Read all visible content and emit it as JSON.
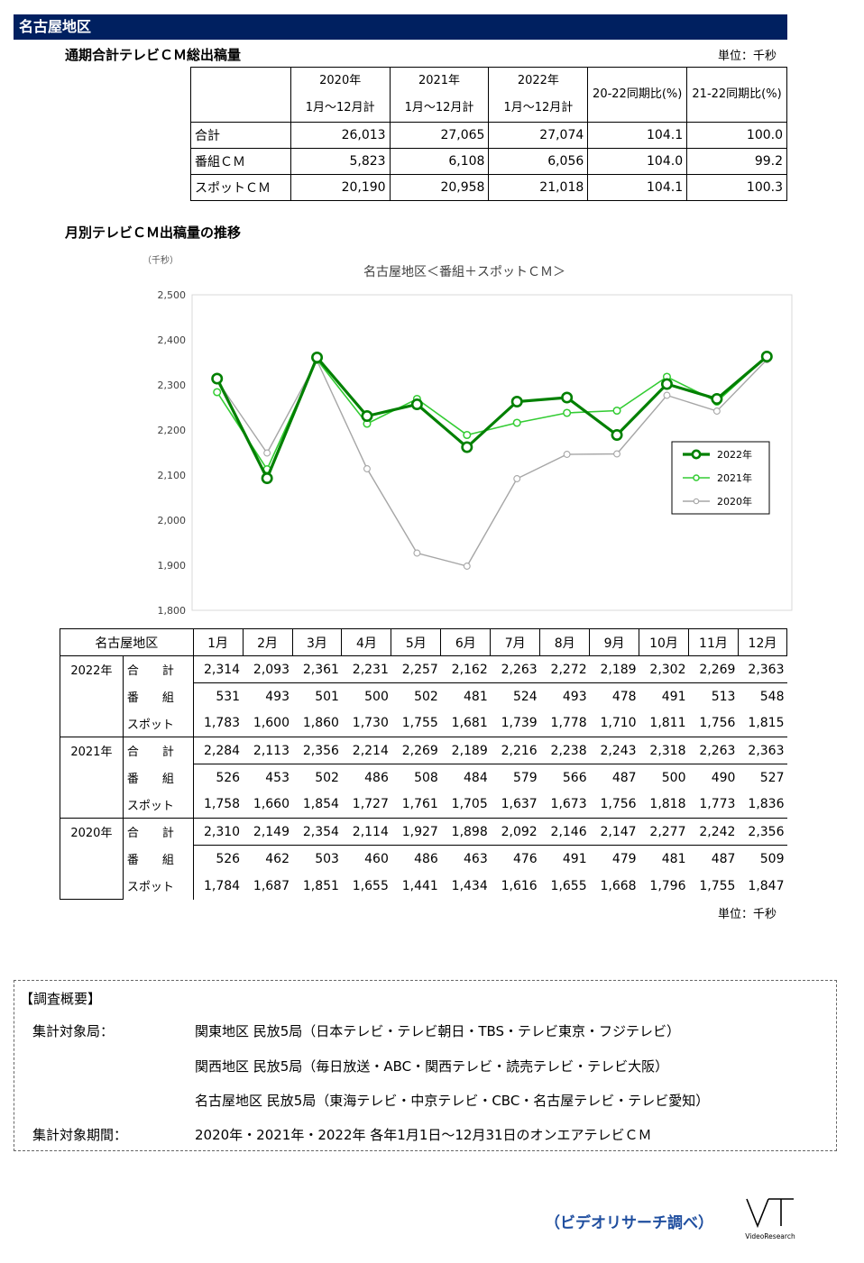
{
  "header": {
    "region": "名古屋地区"
  },
  "summary": {
    "title": "通期合計テレビＣＭ総出稿量",
    "unit": "単位：千秒",
    "headers": [
      {
        "line1": "2020年",
        "line2": "1月～12月計"
      },
      {
        "line1": "2021年",
        "line2": "1月～12月計"
      },
      {
        "line1": "2022年",
        "line2": "1月～12月計"
      },
      {
        "line1": "20-22同期比(%)",
        "line2": ""
      },
      {
        "line1": "21-22同期比(%)",
        "line2": ""
      }
    ],
    "rows": [
      {
        "label": "合計",
        "values": [
          "26,013",
          "27,065",
          "27,074",
          "104.1",
          "100.0"
        ]
      },
      {
        "label": "番組ＣＭ",
        "values": [
          "5,823",
          "6,108",
          "6,056",
          "104.0",
          "99.2"
        ]
      },
      {
        "label": "スポットＣＭ",
        "values": [
          "20,190",
          "20,958",
          "21,018",
          "104.1",
          "100.3"
        ]
      }
    ]
  },
  "monthly_title": "月別テレビＣＭ出稿量の推移",
  "chart_data": {
    "type": "line",
    "title": "名古屋地区＜番組＋スポットＣＭ＞",
    "ylabel": "（千秒）",
    "xlabel": "",
    "ylim": [
      1800,
      2500
    ],
    "yticks": [
      "1,800",
      "1,900",
      "2,000",
      "2,100",
      "2,200",
      "2,300",
      "2,400",
      "2,500"
    ],
    "categories": [
      "1月",
      "2月",
      "3月",
      "4月",
      "5月",
      "6月",
      "7月",
      "8月",
      "9月",
      "10月",
      "11月",
      "12月"
    ],
    "legend_position": "right",
    "grid": false,
    "series": [
      {
        "name": "2022年",
        "color": "#008000",
        "values": [
          2314,
          2093,
          2361,
          2231,
          2257,
          2162,
          2263,
          2272,
          2189,
          2302,
          2269,
          2363
        ]
      },
      {
        "name": "2021年",
        "color": "#33cc33",
        "values": [
          2284,
          2113,
          2356,
          2214,
          2269,
          2189,
          2216,
          2238,
          2243,
          2318,
          2263,
          2363
        ]
      },
      {
        "name": "2020年",
        "color": "#a6a6a6",
        "values": [
          2310,
          2149,
          2354,
          2114,
          1927,
          1898,
          2092,
          2146,
          2147,
          2277,
          2242,
          2356
        ]
      }
    ]
  },
  "monthly": {
    "corner": "名古屋地区",
    "months": [
      "1月",
      "2月",
      "3月",
      "4月",
      "5月",
      "6月",
      "7月",
      "8月",
      "9月",
      "10月",
      "11月",
      "12月"
    ],
    "sub_labels": [
      "合　　計",
      "番　　組",
      "スポット"
    ],
    "groups": [
      {
        "year": "2022年",
        "rows": [
          [
            "2,314",
            "2,093",
            "2,361",
            "2,231",
            "2,257",
            "2,162",
            "2,263",
            "2,272",
            "2,189",
            "2,302",
            "2,269",
            "2,363"
          ],
          [
            "531",
            "493",
            "501",
            "500",
            "502",
            "481",
            "524",
            "493",
            "478",
            "491",
            "513",
            "548"
          ],
          [
            "1,783",
            "1,600",
            "1,860",
            "1,730",
            "1,755",
            "1,681",
            "1,739",
            "1,778",
            "1,710",
            "1,811",
            "1,756",
            "1,815"
          ]
        ]
      },
      {
        "year": "2021年",
        "rows": [
          [
            "2,284",
            "2,113",
            "2,356",
            "2,214",
            "2,269",
            "2,189",
            "2,216",
            "2,238",
            "2,243",
            "2,318",
            "2,263",
            "2,363"
          ],
          [
            "526",
            "453",
            "502",
            "486",
            "508",
            "484",
            "579",
            "566",
            "487",
            "500",
            "490",
            "527"
          ],
          [
            "1,758",
            "1,660",
            "1,854",
            "1,727",
            "1,761",
            "1,705",
            "1,637",
            "1,673",
            "1,756",
            "1,818",
            "1,773",
            "1,836"
          ]
        ]
      },
      {
        "year": "2020年",
        "rows": [
          [
            "2,310",
            "2,149",
            "2,354",
            "2,114",
            "1,927",
            "1,898",
            "2,092",
            "2,146",
            "2,147",
            "2,277",
            "2,242",
            "2,356"
          ],
          [
            "526",
            "462",
            "503",
            "460",
            "486",
            "463",
            "476",
            "491",
            "479",
            "481",
            "487",
            "509"
          ],
          [
            "1,784",
            "1,687",
            "1,851",
            "1,655",
            "1,441",
            "1,434",
            "1,616",
            "1,655",
            "1,668",
            "1,796",
            "1,755",
            "1,847"
          ]
        ]
      }
    ],
    "unit": "単位：千秒"
  },
  "survey": {
    "title": "【調査概要】",
    "stations_label": "集計対象局：",
    "stations": [
      "関東地区 民放5局（日本テレビ・テレビ朝日・TBS・テレビ東京・フジテレビ）",
      "関西地区 民放5局（毎日放送・ABC・関西テレビ・読売テレビ・テレビ大阪）",
      "名古屋地区 民放5局（東海テレビ・中京テレビ・CBC・名古屋テレビ・テレビ愛知）"
    ],
    "period_label": "集計対象期間：",
    "period": "2020年・2021年・2022年 各年1月1日～12月31日のオンエアテレビＣＭ"
  },
  "footer": {
    "credit": "（ビデオリサーチ調べ）",
    "logo_text": "VideoResearch"
  }
}
